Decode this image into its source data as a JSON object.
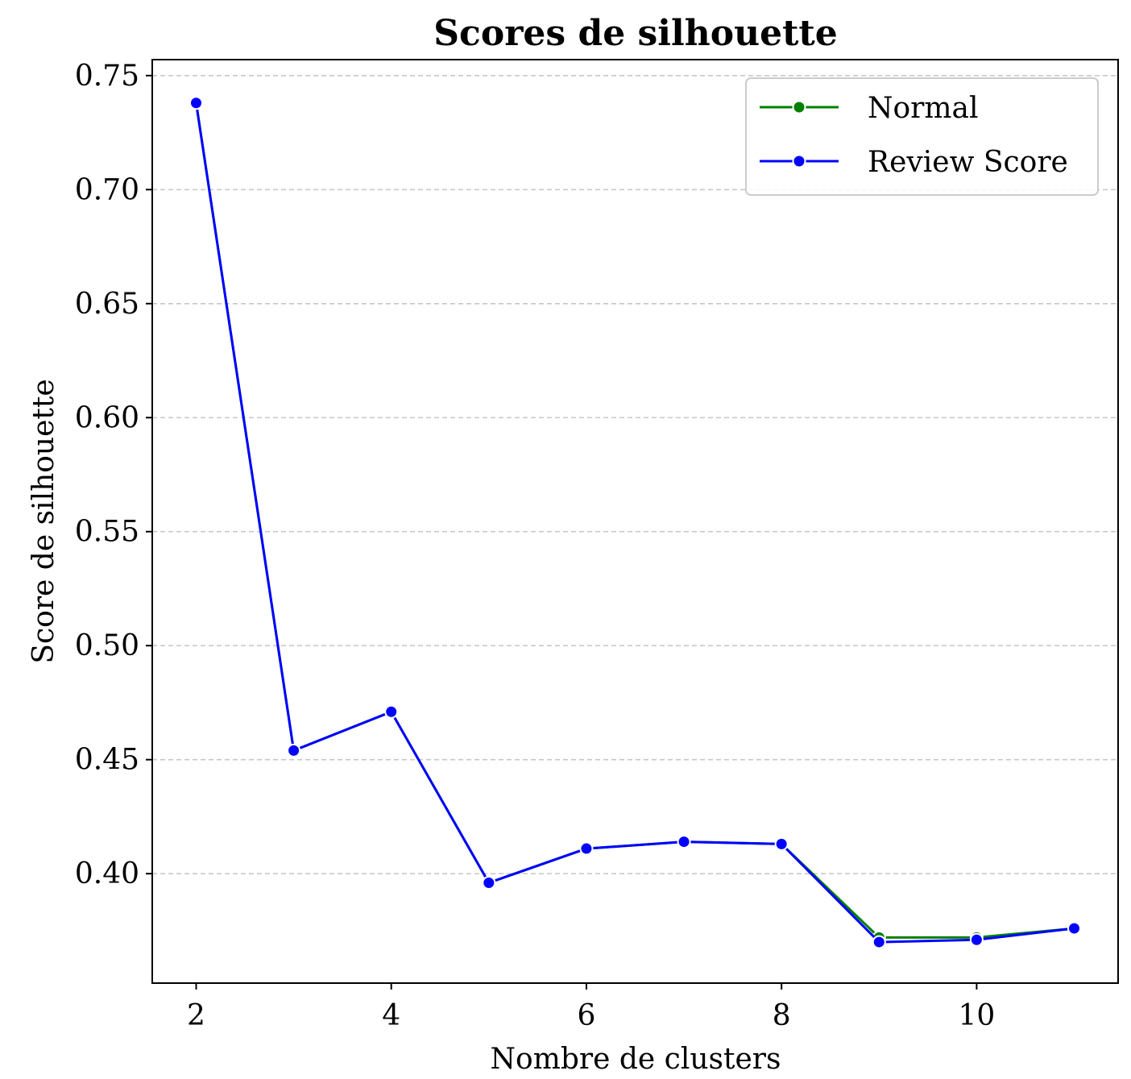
{
  "chart_data": {
    "type": "line",
    "title": "Scores de silhouette",
    "xlabel": "Nombre de clusters",
    "ylabel": "Score de silhouette",
    "x": [
      2,
      3,
      4,
      5,
      6,
      7,
      8,
      9,
      10,
      11
    ],
    "xlim": [
      1.55,
      11.45
    ],
    "ylim": [
      0.352,
      0.757
    ],
    "xticks": [
      2,
      4,
      6,
      8,
      10
    ],
    "yticks": [
      0.4,
      0.45,
      0.5,
      0.55,
      0.6,
      0.65,
      0.7,
      0.75
    ],
    "ytick_labels": [
      "0.40",
      "0.45",
      "0.50",
      "0.55",
      "0.60",
      "0.65",
      "0.70",
      "0.75"
    ],
    "grid": "horizontal dashed",
    "legend_position": "upper right",
    "series": [
      {
        "name": "Normal",
        "color": "#008000",
        "values": [
          0.738,
          0.454,
          0.471,
          0.396,
          0.411,
          0.414,
          0.413,
          0.372,
          0.372,
          0.376
        ]
      },
      {
        "name": "Review Score",
        "color": "#0000ff",
        "values": [
          0.738,
          0.454,
          0.471,
          0.396,
          0.411,
          0.414,
          0.413,
          0.37,
          0.371,
          0.376
        ]
      }
    ]
  }
}
